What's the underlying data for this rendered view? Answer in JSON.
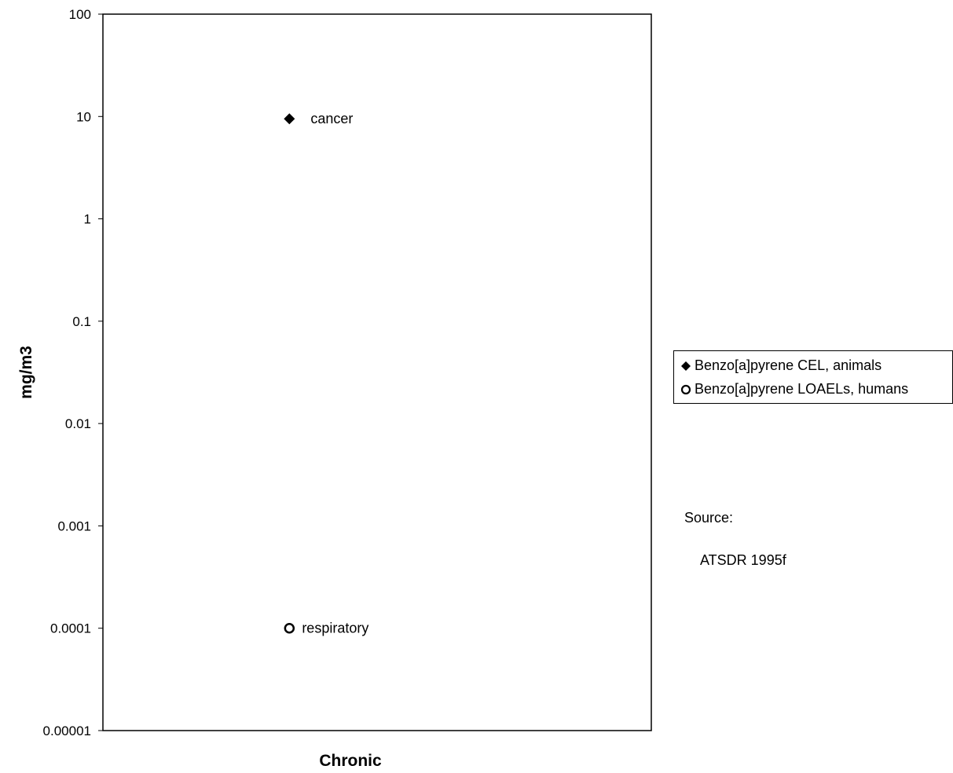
{
  "chart_data": {
    "type": "scatter",
    "yscale": "log",
    "ylim": [
      1e-05,
      100
    ],
    "ylabel": "mg/m3",
    "xlabel": "Chronic",
    "yticks": [
      "100",
      "10",
      "1",
      "0.1",
      "0.01",
      "0.001",
      "0.0001",
      "0.00001"
    ],
    "grid": false,
    "legend_position": "right",
    "series": [
      {
        "name": "Benzo[a]pyrene CEL, animals",
        "marker": "diamond",
        "color": "#000000",
        "points": [
          {
            "x": "Chronic",
            "y": 9.5,
            "label": "cancer"
          }
        ]
      },
      {
        "name": "Benzo[a]pyrene LOAELs, humans",
        "marker": "open-circle",
        "color": "#000000",
        "points": [
          {
            "x": "Chronic",
            "y": 0.0001,
            "label": "respiratory"
          }
        ]
      }
    ]
  },
  "source": {
    "label": "Source:",
    "text": "ATSDR 1995f"
  }
}
